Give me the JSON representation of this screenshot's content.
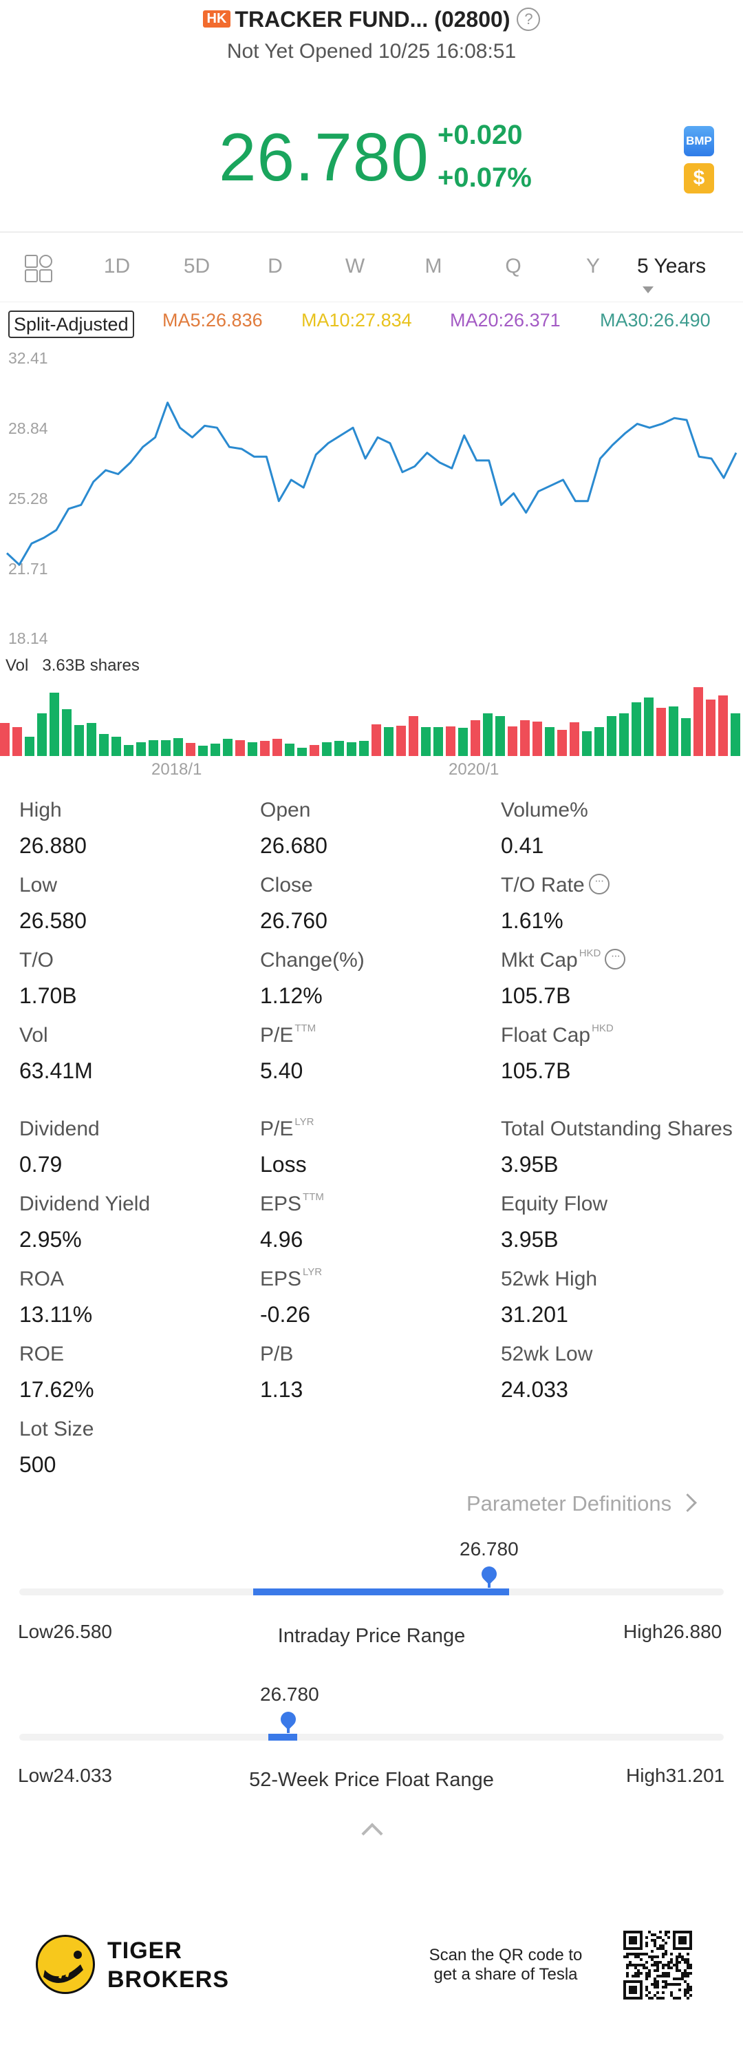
{
  "header": {
    "market_badge": "HK",
    "title": "TRACKER FUND... (02800)",
    "status": "Not Yet Opened 10/25 16:08:51",
    "price": "26.780",
    "change": "+0.020",
    "change_pct": "+0.07%",
    "bmp_icon_label": "BMP",
    "dollar_icon_label": "$"
  },
  "tabs": [
    "1D",
    "5D",
    "D",
    "W",
    "M",
    "Q",
    "Y"
  ],
  "active_period": "5 Years",
  "chart_meta": {
    "adjust_label": "Split-Adjusted",
    "ma": [
      {
        "label": "MA5:26.836",
        "color": "#e07b3c"
      },
      {
        "label": "MA10:27.834",
        "color": "#e8c21d"
      },
      {
        "label": "MA20:26.371",
        "color": "#a35ac4"
      },
      {
        "label": "MA30:26.490",
        "color": "#3d9c8f"
      }
    ],
    "line_color": "#2a8ad0",
    "up_color": "#ef4d57",
    "down_color": "#14b164",
    "y_ticks": [
      "32.41",
      "28.84",
      "25.28",
      "21.71",
      "18.14"
    ],
    "vol_label": "Vol",
    "vol_value": "3.63B shares",
    "x_ticks": [
      "2018/1",
      "2020/1"
    ]
  },
  "chart_data": {
    "type": "line",
    "title": "",
    "ylim": [
      18.14,
      32.41
    ],
    "price_series": [
      22.3,
      21.7,
      22.8,
      23.1,
      23.5,
      24.6,
      24.8,
      26.0,
      26.6,
      26.4,
      27.0,
      27.8,
      28.3,
      30.1,
      28.8,
      28.3,
      28.9,
      28.8,
      27.8,
      27.7,
      27.3,
      27.3,
      25.0,
      26.1,
      25.7,
      27.4,
      28.0,
      28.4,
      28.8,
      27.2,
      28.3,
      28.0,
      26.5,
      26.8,
      27.5,
      27.0,
      26.7,
      28.4,
      27.1,
      27.1,
      24.8,
      25.4,
      24.4,
      25.5,
      25.8,
      26.1,
      25.0,
      25.0,
      27.2,
      27.9,
      28.5,
      29.0,
      28.8,
      29.0,
      29.3,
      29.2,
      27.3,
      27.2,
      26.2,
      27.5
    ],
    "volume": [
      {
        "v": 0.48,
        "up": true
      },
      {
        "v": 0.42,
        "up": true
      },
      {
        "v": 0.28,
        "up": false
      },
      {
        "v": 0.62,
        "up": false
      },
      {
        "v": 0.92,
        "up": false
      },
      {
        "v": 0.68,
        "up": false
      },
      {
        "v": 0.45,
        "up": false
      },
      {
        "v": 0.48,
        "up": false
      },
      {
        "v": 0.32,
        "up": false
      },
      {
        "v": 0.28,
        "up": false
      },
      {
        "v": 0.16,
        "up": false
      },
      {
        "v": 0.2,
        "up": false
      },
      {
        "v": 0.23,
        "up": false
      },
      {
        "v": 0.23,
        "up": false
      },
      {
        "v": 0.26,
        "up": false
      },
      {
        "v": 0.19,
        "up": true
      },
      {
        "v": 0.15,
        "up": false
      },
      {
        "v": 0.18,
        "up": false
      },
      {
        "v": 0.25,
        "up": false
      },
      {
        "v": 0.23,
        "up": true
      },
      {
        "v": 0.2,
        "up": false
      },
      {
        "v": 0.22,
        "up": true
      },
      {
        "v": 0.25,
        "up": true
      },
      {
        "v": 0.18,
        "up": false
      },
      {
        "v": 0.12,
        "up": false
      },
      {
        "v": 0.16,
        "up": true
      },
      {
        "v": 0.2,
        "up": false
      },
      {
        "v": 0.22,
        "up": false
      },
      {
        "v": 0.2,
        "up": false
      },
      {
        "v": 0.22,
        "up": false
      },
      {
        "v": 0.46,
        "up": true
      },
      {
        "v": 0.42,
        "up": false
      },
      {
        "v": 0.44,
        "up": true
      },
      {
        "v": 0.58,
        "up": true
      },
      {
        "v": 0.42,
        "up": false
      },
      {
        "v": 0.42,
        "up": false
      },
      {
        "v": 0.43,
        "up": true
      },
      {
        "v": 0.41,
        "up": false
      },
      {
        "v": 0.52,
        "up": true
      },
      {
        "v": 0.62,
        "up": false
      },
      {
        "v": 0.58,
        "up": false
      },
      {
        "v": 0.43,
        "up": true
      },
      {
        "v": 0.52,
        "up": true
      },
      {
        "v": 0.5,
        "up": true
      },
      {
        "v": 0.42,
        "up": false
      },
      {
        "v": 0.38,
        "up": true
      },
      {
        "v": 0.49,
        "up": true
      },
      {
        "v": 0.36,
        "up": false
      },
      {
        "v": 0.42,
        "up": false
      },
      {
        "v": 0.58,
        "up": false
      },
      {
        "v": 0.62,
        "up": false
      },
      {
        "v": 0.78,
        "up": false
      },
      {
        "v": 0.85,
        "up": false
      },
      {
        "v": 0.7,
        "up": true
      },
      {
        "v": 0.72,
        "up": false
      },
      {
        "v": 0.55,
        "up": false
      },
      {
        "v": 1.0,
        "up": true
      },
      {
        "v": 0.82,
        "up": true
      },
      {
        "v": 0.88,
        "up": true
      },
      {
        "v": 0.62,
        "up": false
      }
    ]
  },
  "stats": [
    {
      "label": "High",
      "value": "26.880",
      "col": 0,
      "row": 0
    },
    {
      "label": "Open",
      "value": "26.680",
      "col": 1,
      "row": 0
    },
    {
      "label": "Volume%",
      "value": "0.41",
      "col": 2,
      "row": 0
    },
    {
      "label": "Low",
      "value": "26.580",
      "col": 0,
      "row": 1
    },
    {
      "label": "Close",
      "value": "26.760",
      "col": 1,
      "row": 1
    },
    {
      "label": "T/O Rate",
      "value": "1.61%",
      "col": 2,
      "row": 1,
      "dots": true
    },
    {
      "label": "T/O",
      "value": "1.70B",
      "col": 0,
      "row": 2
    },
    {
      "label": "Change(%)",
      "value": "1.12%",
      "col": 1,
      "row": 2
    },
    {
      "label": "Mkt Cap",
      "sup": "HKD",
      "value": "105.7B",
      "col": 2,
      "row": 2,
      "dots": true
    },
    {
      "label": "Vol",
      "value": "63.41M",
      "col": 0,
      "row": 3
    },
    {
      "label": "P/E",
      "sup": "TTM",
      "value": "5.40",
      "col": 1,
      "row": 3
    },
    {
      "label": "Float Cap",
      "sup": "HKD",
      "value": "105.7B",
      "col": 2,
      "row": 3
    },
    {
      "label": "Dividend",
      "value": "0.79",
      "col": 0,
      "row": 4
    },
    {
      "label": "P/E",
      "sup": "LYR",
      "value": "Loss",
      "col": 1,
      "row": 4
    },
    {
      "label": "Total Outstanding Shares",
      "value": "3.95B",
      "col": 2,
      "row": 4
    },
    {
      "label": "Dividend Yield",
      "value": "2.95%",
      "col": 0,
      "row": 5
    },
    {
      "label": "EPS",
      "sup": "TTM",
      "value": "4.96",
      "col": 1,
      "row": 5
    },
    {
      "label": "Equity Flow",
      "value": "3.95B",
      "col": 2,
      "row": 5
    },
    {
      "label": "ROA",
      "value": "13.11%",
      "col": 0,
      "row": 6
    },
    {
      "label": "EPS",
      "sup": "LYR",
      "value": "-0.26",
      "col": 1,
      "row": 6
    },
    {
      "label": "52wk High",
      "value": "31.201",
      "col": 2,
      "row": 6
    },
    {
      "label": "ROE",
      "value": "17.62%",
      "col": 0,
      "row": 7
    },
    {
      "label": "P/B",
      "value": "1.13",
      "col": 1,
      "row": 7
    },
    {
      "label": "52wk Low",
      "value": "24.033",
      "col": 2,
      "row": 7
    },
    {
      "label": "Lot Size",
      "value": "500",
      "col": 0,
      "row": 8
    }
  ],
  "param_definitions": "Parameter Definitions",
  "intraday": {
    "caption": "Intraday Price Range",
    "low_label": "Low26.580",
    "high_label": "High26.880",
    "current": "26.780",
    "low": 26.58,
    "high": 26.88,
    "value": 26.78,
    "fill_from": 0.32
  },
  "week52": {
    "caption": "52-Week Price Float Range",
    "low_label": "Low24.033",
    "high_label": "High31.201",
    "current": "26.780",
    "low": 24.033,
    "high": 31.201,
    "value": 26.78,
    "fill_from": 0.32
  },
  "footer": {
    "brand_line1": "TIGER",
    "brand_line2": "BROKERS",
    "qr_line1": "Scan the QR code to",
    "qr_line2": "get a share of Tesla"
  }
}
